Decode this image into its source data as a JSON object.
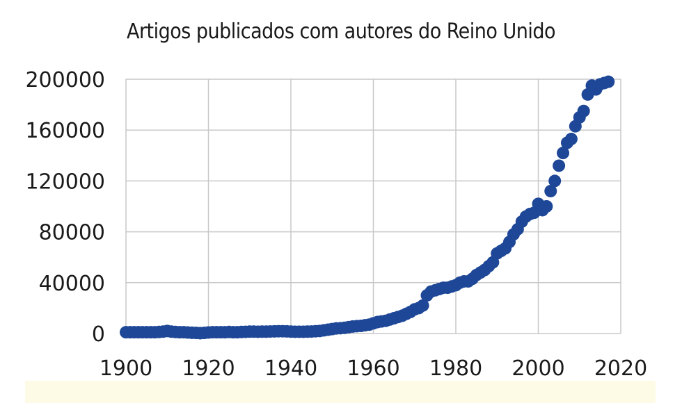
{
  "chart_data": {
    "type": "scatter",
    "title": "Artigos publicados com autores do Reino Unido",
    "xlabel": "",
    "ylabel": "",
    "xlim": [
      1900,
      2020
    ],
    "ylim": [
      0,
      200000
    ],
    "x_ticks": [
      "1900",
      "1920",
      "1940",
      "1960",
      "1980",
      "2000",
      "2020"
    ],
    "y_ticks": [
      "0",
      "40000",
      "80000",
      "120000",
      "160000",
      "200000"
    ],
    "grid": true,
    "marker_color": "#1f4797",
    "series": [
      {
        "x": [
          1900,
          1901,
          1902,
          1903,
          1904,
          1905,
          1906,
          1907,
          1908,
          1909,
          1910,
          1911,
          1912,
          1913,
          1914,
          1915,
          1916,
          1917,
          1918,
          1919,
          1920,
          1921,
          1922,
          1923,
          1924,
          1925,
          1926,
          1927,
          1928,
          1929,
          1930,
          1931,
          1932,
          1933,
          1934,
          1935,
          1936,
          1937,
          1938,
          1939,
          1940,
          1941,
          1942,
          1943,
          1944,
          1945,
          1946,
          1947,
          1948,
          1949,
          1950,
          1951,
          1952,
          1953,
          1954,
          1955,
          1956,
          1957,
          1958,
          1959,
          1960,
          1961,
          1962,
          1963,
          1964,
          1965,
          1966,
          1967,
          1968,
          1969,
          1970,
          1971,
          1972,
          1973,
          1974,
          1975,
          1976,
          1977,
          1978,
          1979,
          1980,
          1981,
          1982,
          1983,
          1984,
          1985,
          1986,
          1987,
          1988,
          1989,
          1990,
          1991,
          1992,
          1993,
          1994,
          1995,
          1996,
          1997,
          1998,
          1999,
          2000,
          2001,
          2002,
          2003,
          2004,
          2005,
          2006,
          2007,
          2008,
          2009,
          2010,
          2011,
          2012,
          2013,
          2014,
          2015,
          2016,
          2017
        ],
        "y": [
          1000,
          1000,
          1000,
          1000,
          1000,
          1000,
          1000,
          1000,
          1200,
          1500,
          2000,
          1500,
          1200,
          1000,
          1000,
          800,
          600,
          500,
          300,
          500,
          800,
          1000,
          1000,
          1000,
          1000,
          1200,
          1000,
          1000,
          1200,
          1300,
          1500,
          1500,
          1400,
          1500,
          1500,
          1600,
          1700,
          1800,
          1800,
          1700,
          1500,
          1400,
          1400,
          1400,
          1500,
          1600,
          1800,
          2000,
          2500,
          3000,
          3500,
          4000,
          4200,
          4500,
          5000,
          5500,
          5800,
          6000,
          6500,
          7000,
          8000,
          9000,
          9500,
          10000,
          11000,
          12000,
          13000,
          14000,
          15500,
          17000,
          19000,
          20000,
          22000,
          30000,
          33000,
          34000,
          35000,
          36000,
          36000,
          37000,
          38000,
          40000,
          41000,
          41000,
          43000,
          46000,
          48000,
          50000,
          53000,
          56000,
          63000,
          65000,
          67000,
          72000,
          78000,
          82000,
          88000,
          92000,
          94000,
          95000,
          102000,
          97000,
          100000,
          112000,
          120000,
          132000,
          142000,
          150000,
          153000,
          163000,
          170000,
          175000,
          188000,
          195000,
          192000,
          196000,
          197000,
          198000
        ]
      }
    ]
  }
}
